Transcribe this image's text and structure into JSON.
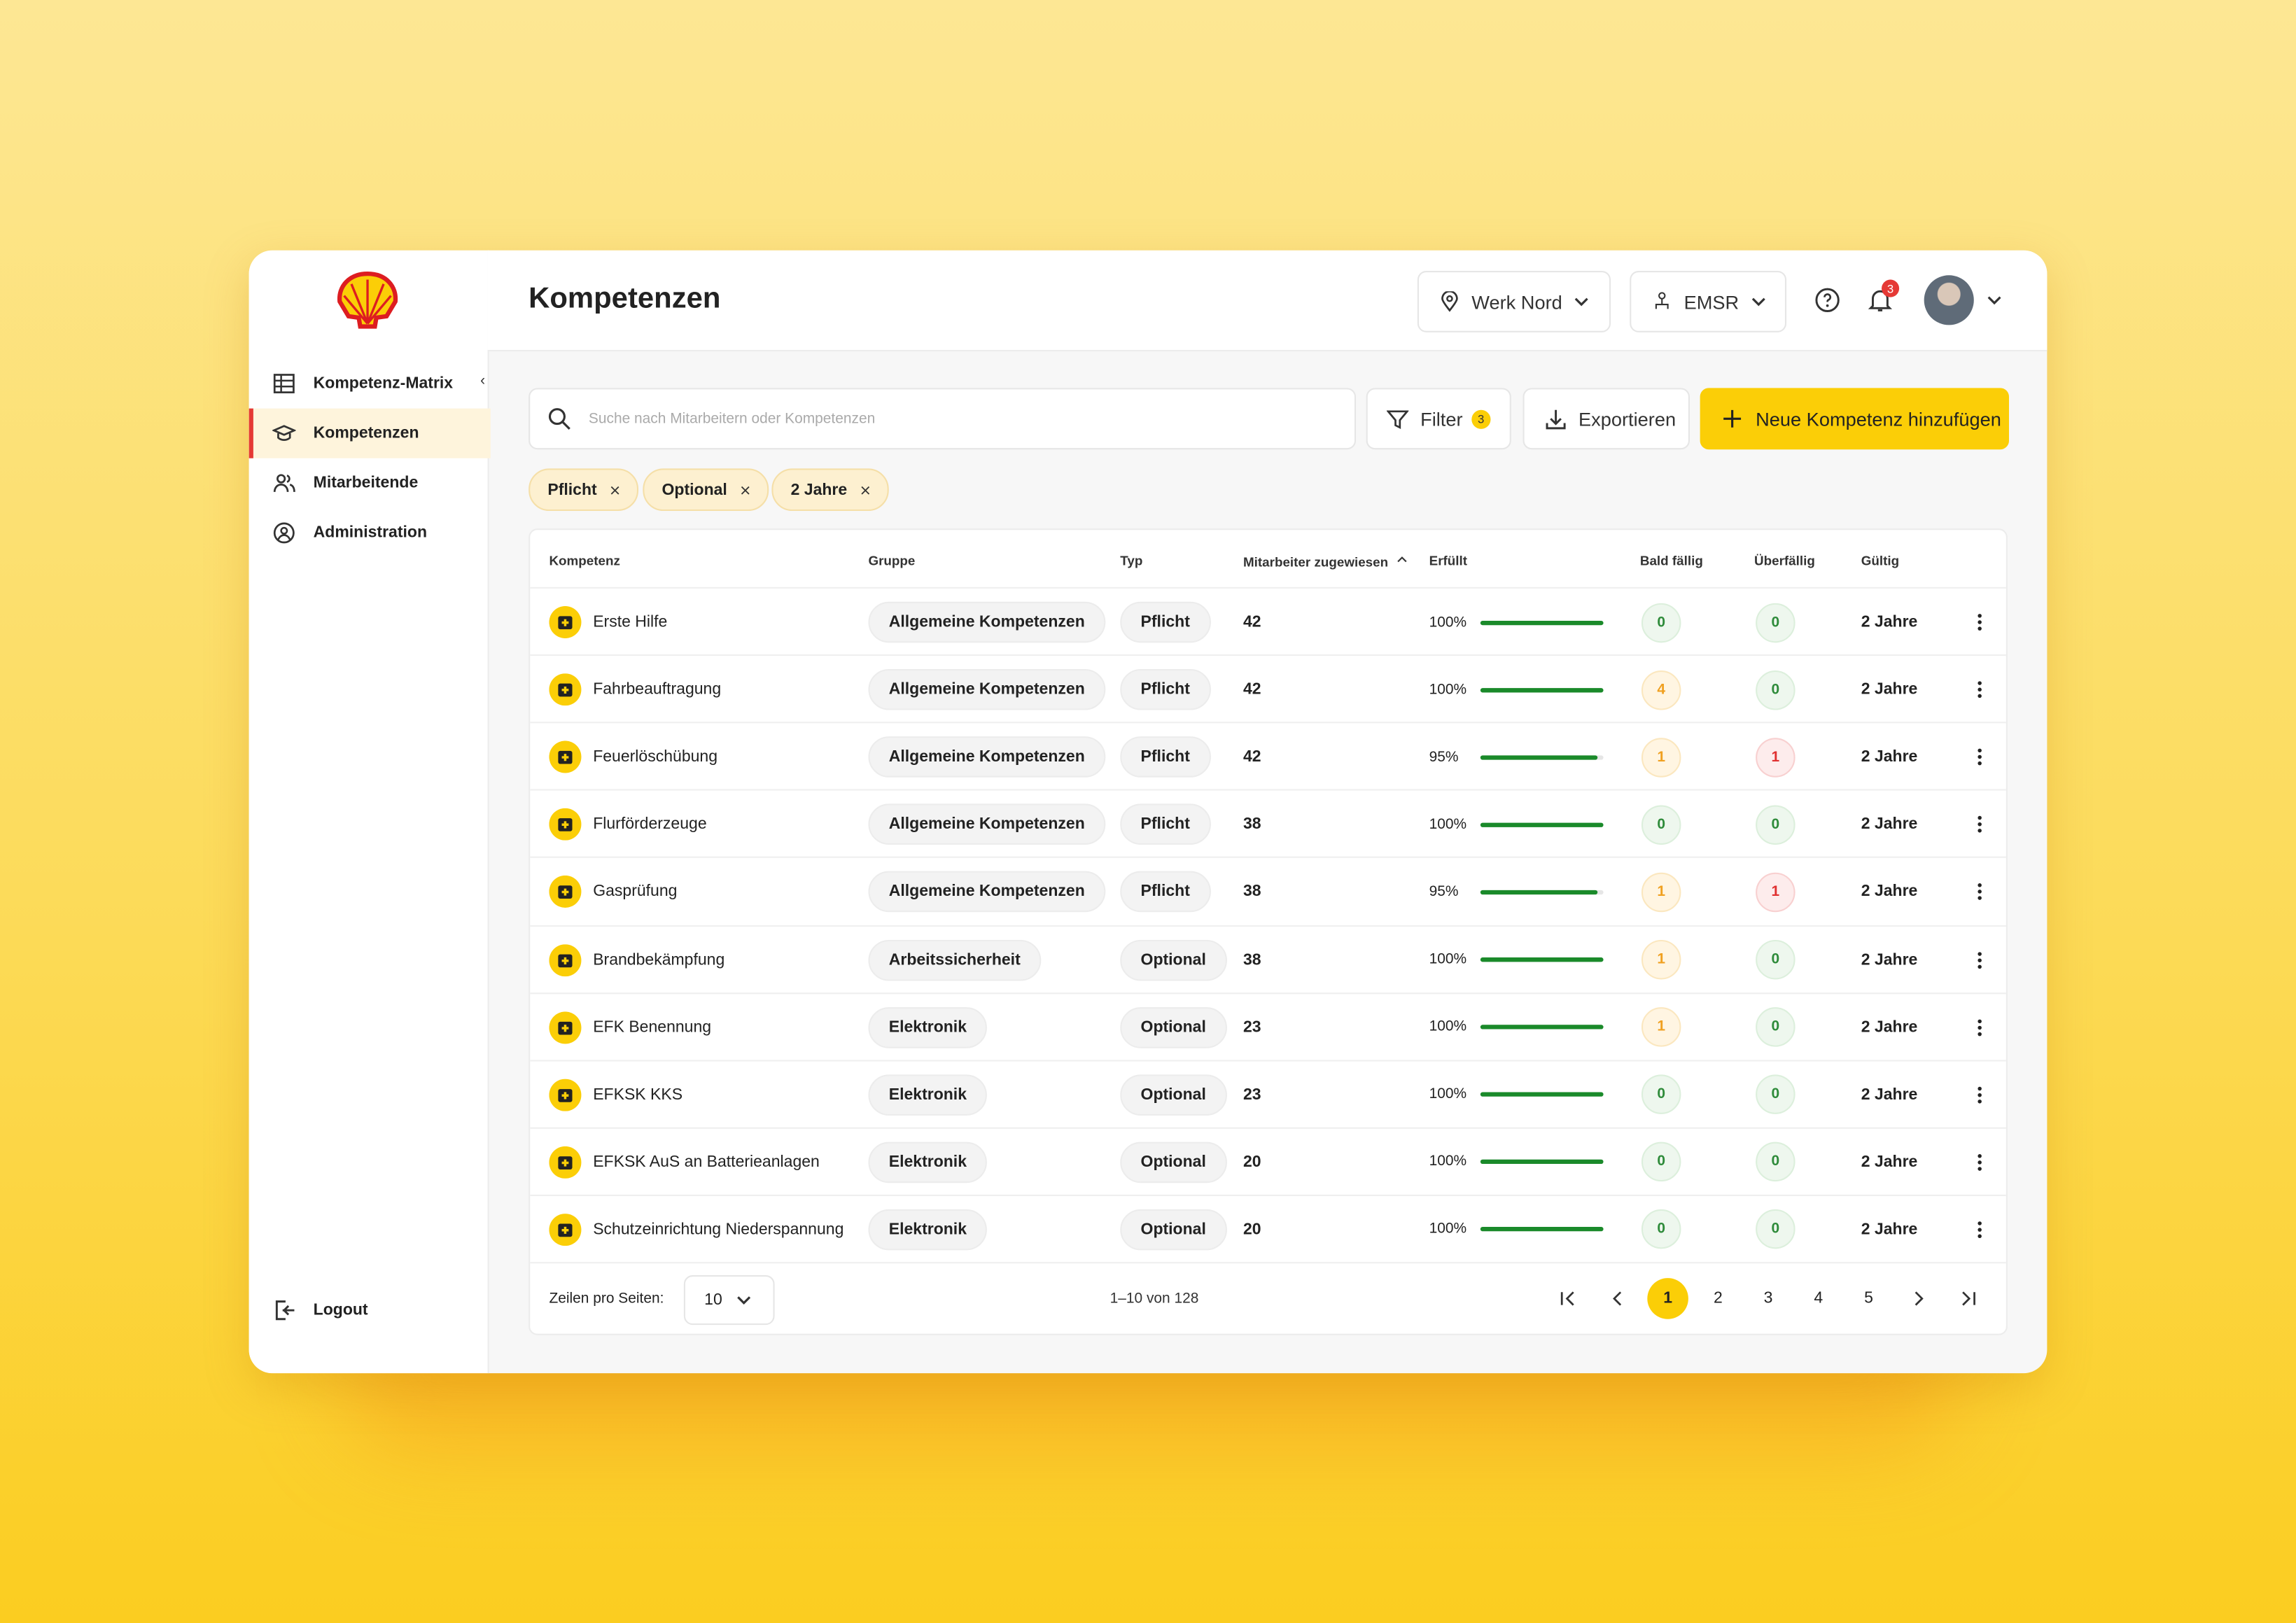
{
  "sidebar": {
    "nav": [
      "Kompetenz-Matrix",
      "Kompetenzen",
      "Mitarbeitende",
      "Administration"
    ],
    "logout": "Logout"
  },
  "header": {
    "title": "Kompetenzen",
    "location": "Werk Nord",
    "department": "EMSR",
    "notifications": "3"
  },
  "toolbar": {
    "search_placeholder": "Suche nach Mitarbeitern oder Kompetenzen",
    "filter": "Filter",
    "filter_count": "3",
    "export": "Exportieren",
    "add": "Neue Kompetenz hinzufügen"
  },
  "chips": [
    "Pflicht",
    "Optional",
    "2 Jahre"
  ],
  "table": {
    "columns": [
      "Kompetenz",
      "Gruppe",
      "Typ",
      "Mitarbeiter zugewiesen",
      "Erfüllt",
      "Bald fällig",
      "Überfällig",
      "Gültig"
    ],
    "rows": [
      [
        "Erste Hilfe",
        "Allgemeine Kompetenzen",
        "Pflicht",
        42,
        "100%",
        0,
        0,
        "2 Jahre"
      ],
      [
        "Fahrbeauftragung",
        "Allgemeine Kompetenzen",
        "Pflicht",
        42,
        "100%",
        4,
        0,
        "2 Jahre"
      ],
      [
        "Feuerlöschübung",
        "Allgemeine Kompetenzen",
        "Pflicht",
        42,
        "95%",
        1,
        1,
        "2 Jahre"
      ],
      [
        "Flurförderzeuge",
        "Allgemeine Kompetenzen",
        "Pflicht",
        38,
        "100%",
        0,
        0,
        "2 Jahre"
      ],
      [
        "Gasprüfung",
        "Allgemeine Kompetenzen",
        "Pflicht",
        38,
        "95%",
        1,
        1,
        "2 Jahre"
      ],
      [
        "Brandbekämpfung",
        "Arbeitssicherheit",
        "Optional",
        38,
        "100%",
        1,
        0,
        "2 Jahre"
      ],
      [
        "EFK Benennung",
        "Elektronik",
        "Optional",
        23,
        "100%",
        1,
        0,
        "2 Jahre"
      ],
      [
        "EFKSK KKS",
        "Elektronik",
        "Optional",
        23,
        "100%",
        0,
        0,
        "2 Jahre"
      ],
      [
        "EFKSK AuS an Batterieanlagen",
        "Elektronik",
        "Optional",
        20,
        "100%",
        0,
        0,
        "2 Jahre"
      ],
      [
        "Schutzeinrichtung Niederspannung",
        "Elektronik",
        "Optional",
        20,
        "100%",
        0,
        0,
        "2 Jahre"
      ]
    ]
  },
  "pagination": {
    "rows_label": "Zeilen pro Seiten:",
    "rows_per_page": "10",
    "range": "1–10 von 128",
    "pages": [
      "1",
      "2",
      "3",
      "4",
      "5"
    ]
  }
}
